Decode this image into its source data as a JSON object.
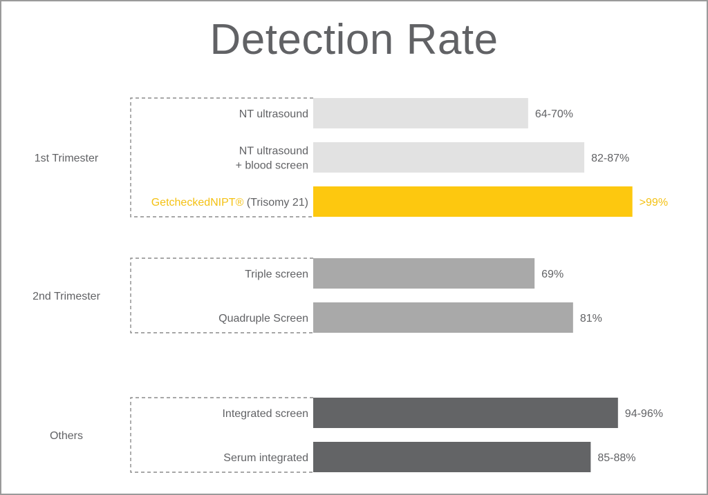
{
  "chart_data": {
    "type": "bar",
    "orientation": "horizontal",
    "title": "Detection Rate",
    "xlim": [
      0,
      100
    ],
    "groups": [
      {
        "label": "1st Trimester",
        "rows": [
          {
            "label": [
              "NT ultrasound"
            ],
            "value": 67,
            "range": [
              64,
              70
            ],
            "value_label": "64-70%",
            "color": "#e2e2e2",
            "highlight": false
          },
          {
            "label": [
              "NT ultrasound",
              "+ blood screen"
            ],
            "value": 84.5,
            "range": [
              82,
              87
            ],
            "value_label": "82-87%",
            "color": "#e2e2e2",
            "highlight": false
          },
          {
            "label": [
              "GetcheckedNIPT® (Trisomy 21)"
            ],
            "label_parts": [
              "GetcheckedNIPT®",
              " (Trisomy 21)"
            ],
            "value": 99.5,
            "value_label": ">99%",
            "color": "#fdc80f",
            "highlight": true
          }
        ]
      },
      {
        "label": "2nd Trimester",
        "rows": [
          {
            "label": [
              "Triple screen"
            ],
            "value": 69,
            "value_label": "69%",
            "color": "#a9a9a9",
            "highlight": false
          },
          {
            "label": [
              "Quadruple Screen"
            ],
            "value": 81,
            "value_label": "81%",
            "color": "#a9a9a9",
            "highlight": false
          }
        ]
      },
      {
        "label": "Others",
        "rows": [
          {
            "label": [
              "Integrated screen"
            ],
            "value": 95,
            "range": [
              94,
              96
            ],
            "value_label": "94-96%",
            "color": "#636466",
            "highlight": false
          },
          {
            "label": [
              "Serum integrated"
            ],
            "value": 86.5,
            "range": [
              85,
              88
            ],
            "value_label": "85-88%",
            "color": "#636466",
            "highlight": false
          }
        ]
      }
    ],
    "colors": {
      "text": "#616265",
      "highlight_text": "#f4c113",
      "bracket": "#8a8a8a"
    }
  }
}
